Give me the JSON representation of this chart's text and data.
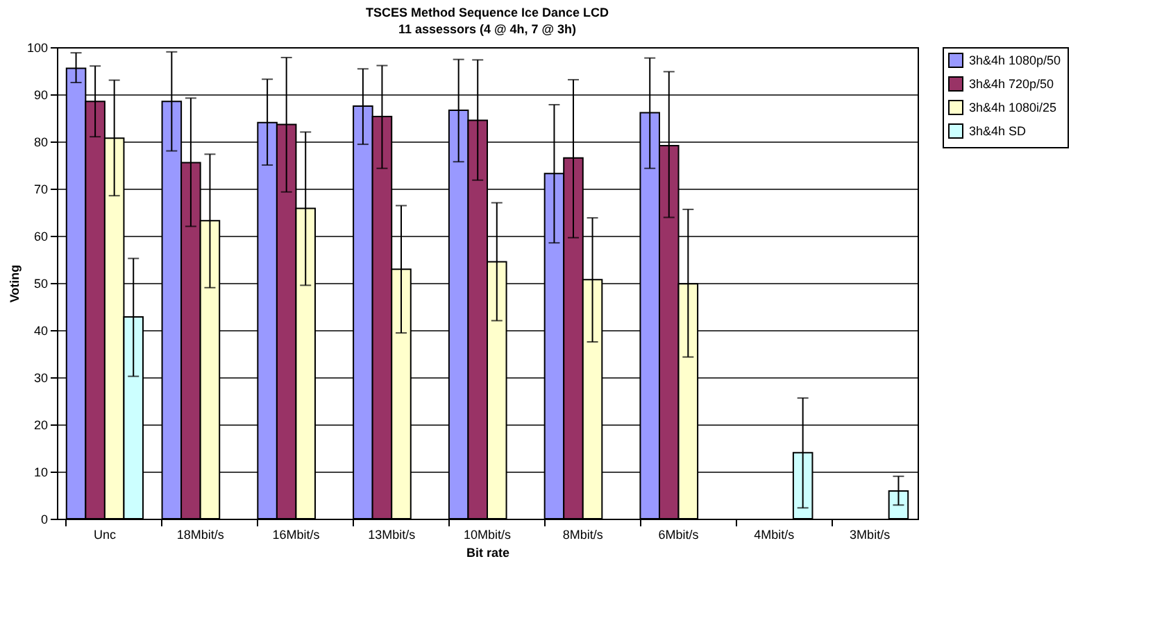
{
  "chart_data": {
    "type": "bar",
    "title": "TSCES Method Sequence Ice Dance LCD",
    "subtitle": "11 assessors (4 @ 4h, 7 @ 3h)",
    "xlabel": "Bit rate",
    "ylabel": "Voting",
    "categories": [
      "Unc",
      "18Mbit/s",
      "16Mbit/s",
      "13Mbit/s",
      "10Mbit/s",
      "8Mbit/s",
      "6Mbit/s",
      "4Mbit/s",
      "3Mbit/s"
    ],
    "series": [
      {
        "name": "3h&4h 1080p/50",
        "color": "#9999ff",
        "values": [
          95.5,
          88.5,
          84,
          87.5,
          86.6,
          73.2,
          86.1,
          null,
          null
        ],
        "errors": [
          [
            92.5,
            98.8
          ],
          [
            78,
            99
          ],
          [
            75,
            93.2
          ],
          [
            79.4,
            95.4
          ],
          [
            75.7,
            97.4
          ],
          [
            58.5,
            87.8
          ],
          [
            74.3,
            97.7
          ],
          null,
          null
        ]
      },
      {
        "name": "3h&4h 720p/50",
        "color": "#993366",
        "values": [
          88.5,
          75.5,
          83.6,
          85.3,
          84.5,
          76.5,
          79.1,
          null,
          null
        ],
        "errors": [
          [
            81,
            96
          ],
          [
            62,
            89.2
          ],
          [
            69.3,
            97.8
          ],
          [
            74.3,
            96.1
          ],
          [
            71.8,
            97.3
          ],
          [
            59.6,
            93.1
          ],
          [
            63.9,
            94.8
          ],
          null,
          null
        ]
      },
      {
        "name": "3h&4h 1080i/25",
        "color": "#ffffcc",
        "values": [
          80.7,
          63.2,
          65.8,
          52.9,
          54.5,
          50.7,
          49.8,
          null,
          null
        ],
        "errors": [
          [
            68.5,
            93
          ],
          [
            49,
            77.3
          ],
          [
            49.5,
            82
          ],
          [
            39.4,
            66.4
          ],
          [
            42,
            67
          ],
          [
            37.5,
            63.8
          ],
          [
            34.3,
            65.6
          ],
          null,
          null
        ]
      },
      {
        "name": "3h&4h SD",
        "color": "#ccffff",
        "values": [
          42.8,
          null,
          null,
          null,
          null,
          null,
          null,
          14,
          5.9
        ],
        "errors": [
          [
            30.2,
            55.2
          ],
          null,
          null,
          null,
          null,
          null,
          null,
          [
            2.3,
            25.6
          ],
          [
            2.9,
            9
          ]
        ]
      }
    ],
    "ylim": [
      0,
      100
    ],
    "yticks": [
      0,
      10,
      20,
      30,
      40,
      50,
      60,
      70,
      80,
      90,
      100
    ],
    "grid": "y",
    "legend": "right"
  }
}
